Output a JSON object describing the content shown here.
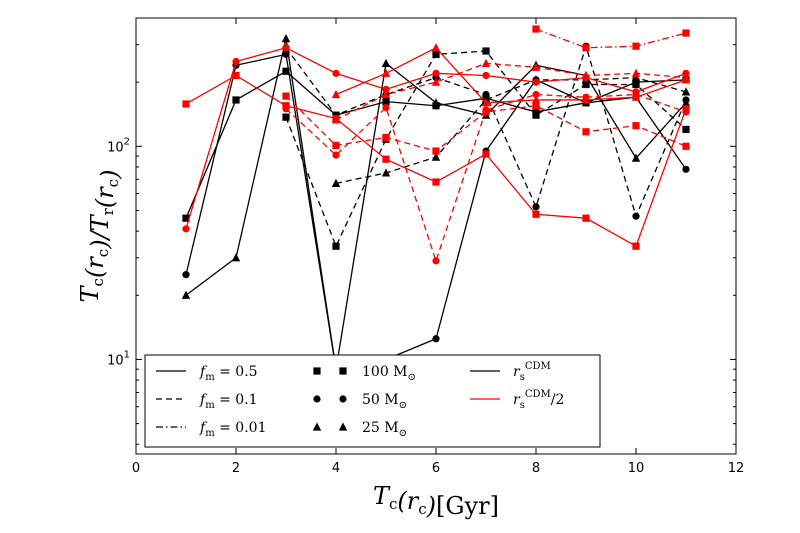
{
  "chart_data": {
    "type": "line",
    "xlabel": "T_c(r_c)[Gyr]",
    "ylabel": "T_c(r_c)/T_r(r_c)",
    "xlim": [
      0,
      12
    ],
    "ylim": [
      3.6,
      400
    ],
    "yscale": "log",
    "grid": false,
    "legend_position": "bottom-left",
    "x_ticks": [
      0,
      2,
      4,
      6,
      8,
      10,
      12
    ],
    "x_tick_labels": [
      "0",
      "2",
      "4",
      "6",
      "8",
      "10",
      "12"
    ],
    "y_ticks": [
      10,
      100
    ],
    "y_tick_labels": [
      "10^1",
      "10^2"
    ],
    "colors": {
      "black": "#000000",
      "red": "#ff0000"
    },
    "series": [
      {
        "color": "black",
        "linestyle": "solid",
        "marker": "square",
        "x": [
          1,
          2,
          3,
          4,
          5,
          6,
          7,
          8,
          9,
          10,
          11
        ],
        "values": [
          46,
          165,
          225,
          140,
          162,
          155,
          168,
          145,
          160,
          200,
          205
        ]
      },
      {
        "color": "black",
        "linestyle": "solid",
        "marker": "circle",
        "x": [
          1,
          2,
          3,
          4,
          5,
          6,
          7,
          8,
          9,
          10,
          11
        ],
        "values": [
          25,
          240,
          270,
          9,
          10,
          12.5,
          95,
          205,
          160,
          170,
          78
        ]
      },
      {
        "color": "black",
        "linestyle": "solid",
        "marker": "triangle",
        "x": [
          1,
          2,
          3,
          4,
          5,
          6,
          7,
          8,
          9,
          10,
          11
        ],
        "values": [
          20,
          30,
          320,
          9,
          245,
          160,
          140,
          240,
          215,
          88,
          160
        ]
      },
      {
        "color": "black",
        "linestyle": "dashed",
        "marker": "square",
        "x": [
          3,
          4,
          5,
          6,
          7,
          8,
          9,
          10,
          11
        ],
        "values": [
          137,
          34,
          108,
          270,
          280,
          140,
          195,
          195,
          120
        ]
      },
      {
        "color": "black",
        "linestyle": "dashed",
        "marker": "circle",
        "x": [
          3,
          4,
          5,
          6,
          7,
          8,
          9,
          10,
          11
        ],
        "values": [
          290,
          140,
          175,
          210,
          175,
          52,
          295,
          47,
          165
        ]
      },
      {
        "color": "black",
        "linestyle": "dashed",
        "marker": "triangle",
        "x": [
          4,
          5,
          6,
          7,
          8,
          9,
          10,
          11
        ],
        "values": [
          67,
          75,
          89,
          165,
          205,
          205,
          210,
          180
        ]
      },
      {
        "color": "red",
        "linestyle": "solid",
        "marker": "square",
        "x": [
          1,
          2,
          3,
          4,
          5,
          6,
          7,
          8,
          9,
          10,
          11
        ],
        "values": [
          158,
          215,
          155,
          135,
          87,
          68,
          92,
          48,
          46,
          34,
          150
        ]
      },
      {
        "color": "red",
        "linestyle": "solid",
        "marker": "circle",
        "x": [
          1,
          2,
          3,
          4,
          5,
          6,
          7,
          8,
          9,
          10,
          11
        ],
        "values": [
          41,
          250,
          290,
          220,
          185,
          220,
          215,
          200,
          210,
          180,
          220
        ]
      },
      {
        "color": "red",
        "linestyle": "solid",
        "marker": "triangle",
        "x": [
          4,
          5,
          6,
          7,
          8,
          9,
          10,
          11
        ],
        "values": [
          175,
          220,
          290,
          160,
          165,
          165,
          170,
          205
        ]
      },
      {
        "color": "red",
        "linestyle": "dashed",
        "marker": "square",
        "x": [
          3,
          4,
          5,
          6,
          7,
          8,
          9,
          10,
          11
        ],
        "values": [
          172,
          101,
          110,
          95,
          145,
          155,
          117,
          125,
          100
        ]
      },
      {
        "color": "red",
        "linestyle": "dashed",
        "marker": "circle",
        "x": [
          3,
          4,
          5,
          6,
          7,
          8,
          9,
          10,
          11
        ],
        "values": [
          150,
          91,
          152,
          29,
          148,
          175,
          170,
          175,
          145
        ]
      },
      {
        "color": "red",
        "linestyle": "dashed",
        "marker": "triangle",
        "x": [
          4,
          5,
          6,
          7,
          8,
          9,
          10,
          11
        ],
        "values": [
          133,
          175,
          200,
          245,
          235,
          215,
          220,
          210
        ]
      },
      {
        "color": "red",
        "linestyle": "dashdot",
        "marker": "square",
        "x": [
          8,
          9,
          10,
          11
        ],
        "values": [
          355,
          290,
          295,
          340
        ]
      }
    ],
    "legend": {
      "linestyles": [
        {
          "style": "solid",
          "label": "f_m = 0.5"
        },
        {
          "style": "dashed",
          "label": "f_m = 0.1"
        },
        {
          "style": "dashdot",
          "label": "f_m = 0.01"
        }
      ],
      "markers": [
        {
          "marker": "square",
          "label": "100 M_⊙"
        },
        {
          "marker": "circle",
          "label": "50 M_⊙"
        },
        {
          "marker": "triangle",
          "label": "25 M_⊙"
        }
      ],
      "colors": [
        {
          "color": "black",
          "label": "r_s^CDM"
        },
        {
          "color": "red",
          "label": "r_s^CDM/2"
        }
      ]
    }
  }
}
